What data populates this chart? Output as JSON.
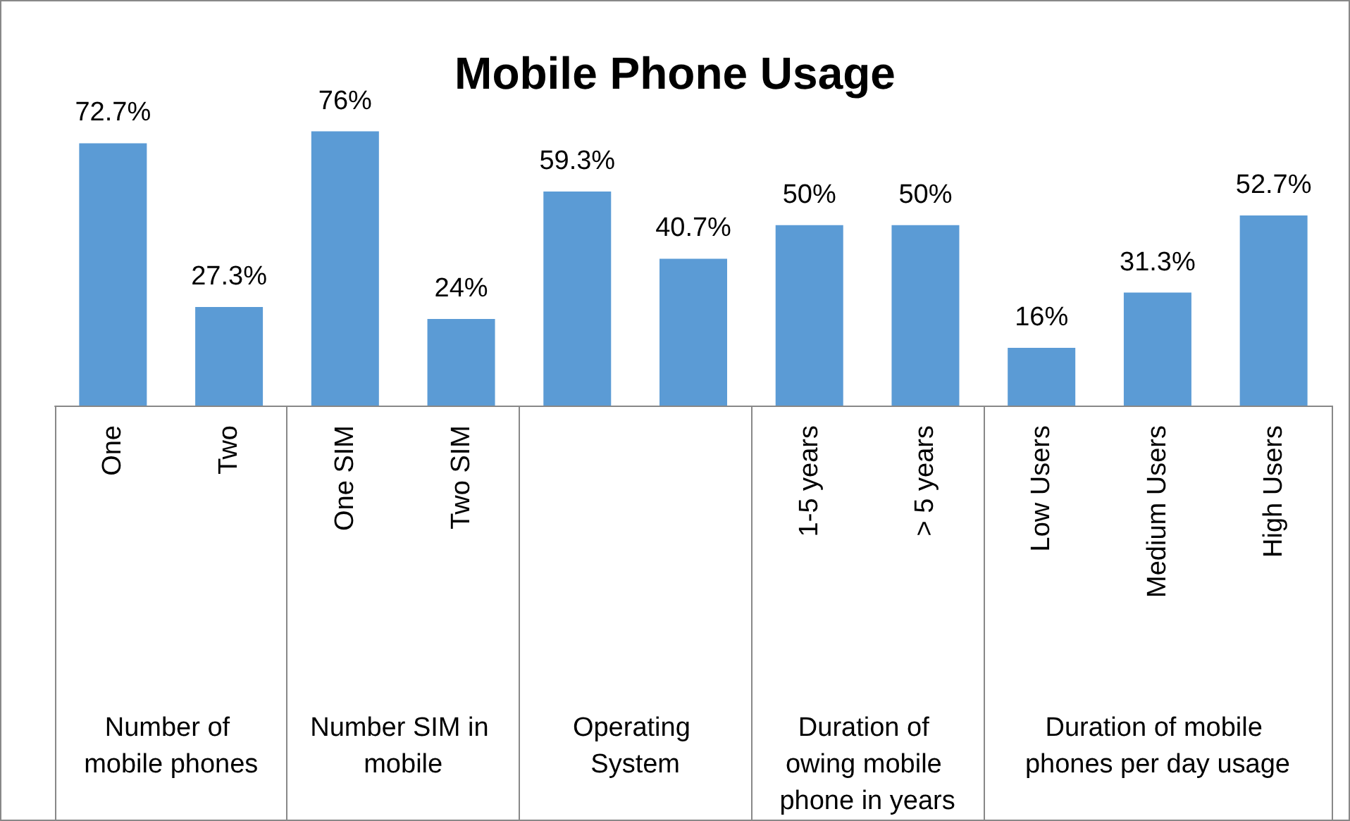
{
  "chart_data": {
    "type": "bar",
    "title": "Mobile Phone Usage",
    "categories": [
      "One",
      "Two",
      "One SIM",
      "Two SIM",
      null,
      null,
      "1-5 years",
      "> 5 years",
      "Low Users",
      "Medium Users",
      "High Users"
    ],
    "values": [
      72.7,
      27.3,
      76,
      24,
      59.3,
      40.7,
      50,
      50,
      16,
      31.3,
      52.7
    ],
    "value_labels": [
      "72.7%",
      "27.3%",
      "76%",
      "24%",
      "59.3%",
      "40.7%",
      "50%",
      "50%",
      "16%",
      "31.3%",
      "52.7%"
    ],
    "color": "#5b9bd5",
    "tick_labels": "x",
    "grid": false,
    "annotations": [
      "Number of mobile phones",
      "Number SIM in mobile",
      "Operating System",
      "Duration of owing mobile phone in years",
      "Duration of mobile phones per day usage"
    ]
  }
}
